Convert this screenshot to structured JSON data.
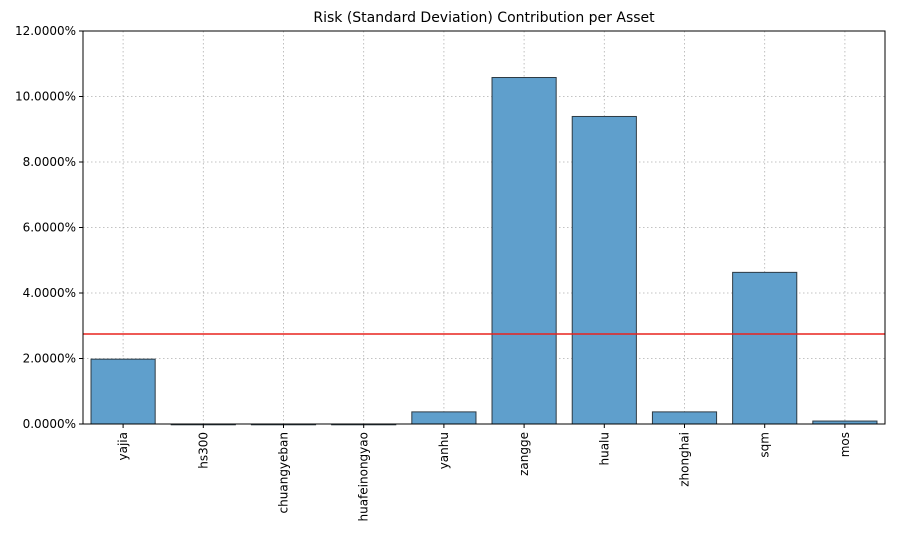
{
  "chart_data": {
    "type": "bar",
    "title": "Risk (Standard Deviation) Contribution per Asset",
    "xlabel": "",
    "ylabel": "",
    "categories": [
      "yajia",
      "hs300",
      "chuangyeban",
      "huafeinongyao",
      "yanhu",
      "zangge",
      "hualu",
      "zhonghai",
      "sqm",
      "mos"
    ],
    "values": [
      1.98,
      0.0,
      0.0,
      0.0,
      0.37,
      10.58,
      9.39,
      0.37,
      4.63,
      0.09
    ],
    "ylim": [
      0,
      12
    ],
    "yticks": [
      0,
      2,
      4,
      6,
      8,
      10,
      12
    ],
    "ytick_labels": [
      "0.0000%",
      "2.0000%",
      "4.0000%",
      "6.0000%",
      "8.0000%",
      "10.0000%",
      "12.0000%"
    ],
    "reference_line": {
      "value": 2.75,
      "color": "#e8231f"
    },
    "grid": true,
    "bar_color": "#5f9fcc",
    "bar_edge_color": "#2e3b44"
  }
}
